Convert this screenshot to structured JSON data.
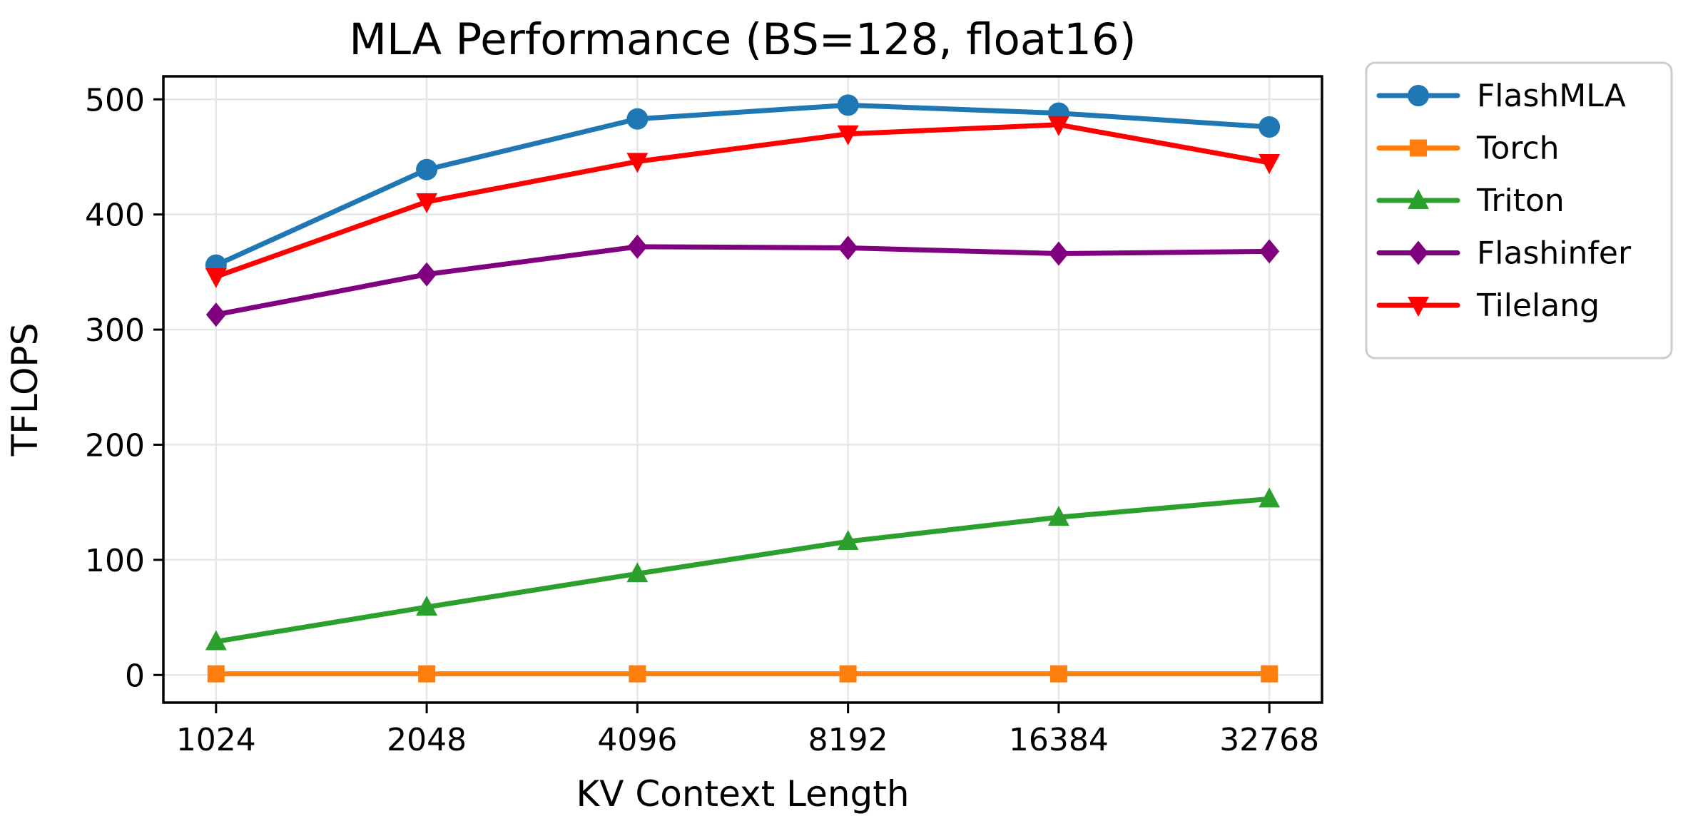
{
  "figure": {
    "background": "#ffffff"
  },
  "chart_data": {
    "type": "line",
    "title": "MLA Performance (BS=128, float16)",
    "xlabel": "KV Context Length",
    "ylabel": "TFLOPS",
    "categories": [
      "1024",
      "2048",
      "4096",
      "8192",
      "16384",
      "32768"
    ],
    "x_scale": "categorical-log2-spacing",
    "yticks": [
      0,
      100,
      200,
      300,
      400,
      500
    ],
    "ylim": [
      -24,
      520
    ],
    "grid": true,
    "grid_color": "#e7e7e7",
    "spine_color": "#000000",
    "legend_position": "outside-right-top",
    "legend_border_color": "#cccccc",
    "series": [
      {
        "name": "FlashMLA",
        "color": "#1f77b4",
        "marker": "circle",
        "values": [
          356,
          439,
          483,
          495,
          488,
          476
        ]
      },
      {
        "name": "Torch",
        "color": "#ff7f0e",
        "marker": "square",
        "values": [
          1,
          1,
          1,
          1,
          1,
          1
        ]
      },
      {
        "name": "Triton",
        "color": "#2ca02c",
        "marker": "triangle-up",
        "values": [
          29,
          59,
          88,
          116,
          137,
          153
        ]
      },
      {
        "name": "Flashinfer",
        "color": "#800080",
        "marker": "diamond",
        "values": [
          313,
          348,
          372,
          371,
          366,
          368
        ]
      },
      {
        "name": "Tilelang",
        "color": "#ff0000",
        "marker": "triangle-down",
        "values": [
          346,
          411,
          446,
          470,
          478,
          445
        ]
      }
    ]
  }
}
